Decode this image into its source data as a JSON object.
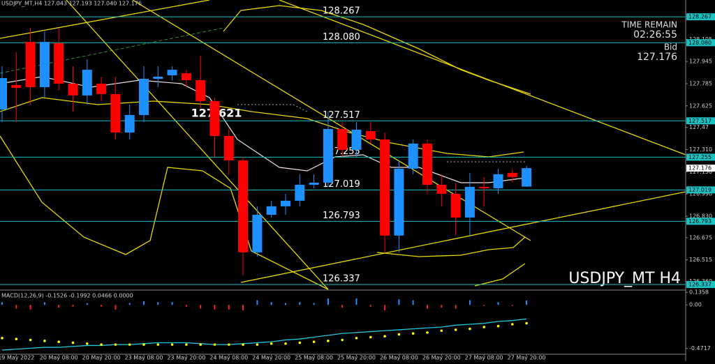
{
  "chart_data": [
    {
      "type": "candlestick",
      "header": "USDJPY_MT,H4 127.043 127.193 127.040 127.176",
      "title": "USDJPY_MT H4",
      "annotation": "127.621",
      "annotation_value": 127.621,
      "timer_label": "TIME REMAIN",
      "timer": "02:26:55",
      "bid_label": "Bid",
      "bid": 127.176,
      "categories": [
        null,
        "19 May 2022",
        null,
        null,
        "20 May 08:00",
        null,
        null,
        "20 May 20:00",
        null,
        null,
        "23 May 08:00",
        null,
        null,
        "23 May 20:00",
        null,
        null,
        "24 May 08:00",
        null,
        null,
        "24 May 20:00",
        null,
        null,
        "25 May 08:00",
        null,
        null,
        "25 May 20:00",
        null,
        null,
        "26 May 08:00",
        null,
        null,
        "26 May 20:00",
        null,
        null,
        "27 May 08:00",
        null,
        null,
        "27 May 20:00"
      ],
      "open": [
        127.599,
        127.775,
        128.086,
        127.76,
        128.076,
        127.785,
        127.7,
        127.785,
        127.71,
        127.433,
        127.559,
        127.82,
        127.845,
        127.86,
        127.81,
        127.659,
        127.408,
        127.232,
        126.569,
        126.84,
        126.901,
        126.941,
        127.056,
        127.071,
        127.458,
        127.308,
        127.443,
        127.383,
        126.69,
        127.172,
        127.353,
        127.056,
        126.991,
        126.82,
        127.041,
        127.031,
        127.142,
        127.043
      ],
      "high": [
        127.911,
        128.011,
        128.187,
        128.162,
        128.187,
        127.911,
        127.961,
        127.835,
        127.835,
        127.634,
        127.911,
        127.911,
        127.911,
        127.885,
        127.986,
        127.684,
        127.458,
        127.257,
        126.901,
        126.941,
        126.991,
        127.132,
        127.132,
        127.584,
        127.509,
        127.509,
        127.509,
        127.433,
        127.232,
        127.383,
        127.383,
        127.132,
        127.071,
        127.142,
        127.112,
        127.172,
        127.172,
        127.193
      ],
      "low": [
        127.509,
        127.509,
        127.634,
        127.684,
        127.735,
        127.584,
        127.634,
        127.659,
        127.383,
        127.383,
        127.509,
        127.76,
        127.81,
        127.76,
        127.609,
        127.257,
        127.132,
        126.403,
        126.539,
        126.82,
        126.84,
        126.901,
        127.031,
        127.041,
        127.257,
        127.257,
        127.353,
        126.569,
        126.569,
        127.132,
        126.991,
        126.901,
        126.69,
        126.69,
        126.901,
        126.991,
        127.071,
        127.04
      ],
      "close": [
        127.825,
        127.755,
        127.76,
        128.086,
        127.785,
        127.7,
        127.885,
        127.71,
        127.433,
        127.559,
        127.82,
        127.835,
        127.885,
        127.81,
        127.659,
        127.408,
        127.232,
        126.569,
        126.84,
        126.901,
        126.941,
        127.056,
        127.071,
        127.458,
        127.308,
        127.453,
        127.383,
        126.69,
        127.172,
        127.353,
        127.056,
        126.991,
        126.82,
        127.041,
        127.031,
        127.132,
        127.112,
        127.176
      ],
      "up_color": "#1e90ff",
      "down_color": "#ff0000",
      "levels": [
        128.267,
        {
          "value": 128.08,
          "label": "128.080"
        },
        127.517,
        127.255,
        127.019,
        126.793,
        126.337
      ],
      "level_color": "#19c3c3",
      "ylim": [
        126.302,
        128.388
      ],
      "yticks": [
        128.105,
        127.945,
        127.785,
        127.625,
        127.47,
        {
          "value": 127.31,
          "label": "127.310"
        },
        {
          "value": 127.15,
          "label": "127.150"
        },
        {
          "value": 126.99,
          "label": "126.990"
        },
        {
          "value": 126.83,
          "label": "126.830"
        },
        126.675,
        126.515,
        {
          "value": 126.36,
          "label": "126.360"
        }
      ]
    },
    {
      "type": "macd",
      "title": "MACD(12,26,9) -0.1526 -0.1992 0.0466 0.0000",
      "series": [
        {
          "color": "#1e90ff",
          "down_color": "#ff2020",
          "values": [
            0.03,
            -0.04,
            -0.05,
            0.03,
            -0.03,
            -0.02,
            0.02,
            -0.02,
            -0.05,
            0.02,
            0.04,
            0.03,
            0.03,
            -0.02,
            -0.04,
            -0.05,
            -0.05,
            -0.06,
            0.05,
            0.03,
            0.02,
            0.03,
            0.02,
            0.07,
            -0.03,
            0.07,
            -0.02,
            -0.06,
            0.06,
            0.05,
            -0.04,
            -0.03,
            -0.04,
            0.05,
            -0.01,
            0.03,
            -0.01,
            0.0466
          ]
        },
        {
          "color": "#20c8e0",
          "values": [
            -0.49,
            -0.48,
            -0.47,
            -0.46,
            -0.46,
            -0.45,
            -0.44,
            -0.44,
            -0.43,
            -0.43,
            -0.42,
            -0.41,
            -0.41,
            -0.41,
            -0.42,
            -0.43,
            -0.43,
            -0.42,
            -0.41,
            -0.4,
            -0.38,
            -0.37,
            -0.35,
            -0.33,
            -0.31,
            -0.3,
            -0.29,
            -0.28,
            -0.27,
            -0.26,
            -0.25,
            -0.24,
            -0.22,
            -0.21,
            -0.2,
            -0.18,
            -0.17,
            -0.1526
          ]
        },
        {
          "color": "#ffff00",
          "values": [
            -0.36,
            -0.37,
            -0.38,
            -0.39,
            -0.4,
            -0.41,
            -0.42,
            -0.43,
            -0.43,
            -0.43,
            -0.43,
            -0.43,
            -0.43,
            -0.43,
            -0.43,
            -0.43,
            -0.43,
            -0.43,
            -0.43,
            -0.42,
            -0.42,
            -0.41,
            -0.4,
            -0.39,
            -0.38,
            -0.36,
            -0.35,
            -0.34,
            -0.32,
            -0.31,
            -0.3,
            -0.28,
            -0.27,
            -0.26,
            -0.24,
            -0.23,
            -0.21,
            -0.1992
          ]
        }
      ],
      "ylim": [
        -0.55,
        0.145
      ],
      "yticks": [
        0.1358,
        {
          "value": 0,
          "label": "0.00"
        },
        -0.4717
      ]
    }
  ]
}
